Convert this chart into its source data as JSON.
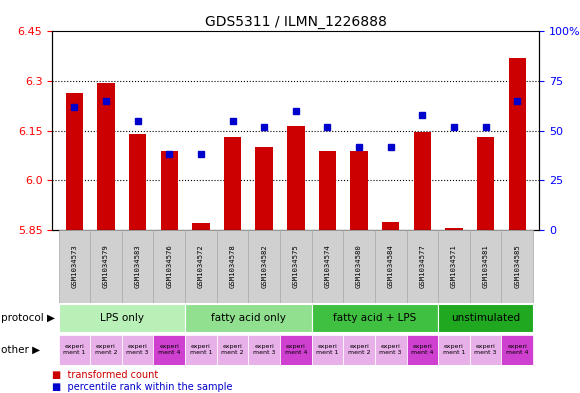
{
  "title": "GDS5311 / ILMN_1226888",
  "samples": [
    "GSM1034573",
    "GSM1034579",
    "GSM1034583",
    "GSM1034576",
    "GSM1034572",
    "GSM1034578",
    "GSM1034582",
    "GSM1034575",
    "GSM1034574",
    "GSM1034580",
    "GSM1034584",
    "GSM1034577",
    "GSM1034571",
    "GSM1034581",
    "GSM1034585"
  ],
  "transformed_count": [
    6.265,
    6.295,
    6.14,
    6.09,
    5.87,
    6.13,
    6.1,
    6.165,
    6.09,
    6.09,
    5.875,
    6.145,
    5.855,
    6.13,
    6.37
  ],
  "percentile_rank": [
    62,
    65,
    55,
    38,
    38,
    55,
    52,
    60,
    52,
    42,
    42,
    58,
    52,
    52,
    65
  ],
  "protocol_groups": [
    {
      "label": "LPS only",
      "start": 0,
      "end": 3,
      "color": "#b8f0b8"
    },
    {
      "label": "fatty acid only",
      "start": 4,
      "end": 7,
      "color": "#90e090"
    },
    {
      "label": "fatty acid + LPS",
      "start": 8,
      "end": 11,
      "color": "#40c040"
    },
    {
      "label": "unstimulated",
      "start": 12,
      "end": 14,
      "color": "#20a820"
    }
  ],
  "experiment_labels": [
    "experiment 1",
    "experiment 2",
    "experiment 3",
    "experiment 4",
    "experiment 1",
    "experiment 2",
    "experiment 3",
    "experiment 4",
    "experiment 1",
    "experiment 2",
    "experiment 3",
    "experiment 4",
    "experiment 1",
    "experiment 3",
    "experiment 4"
  ],
  "experiment_colors": [
    "#e8b0e8",
    "#e8b0e8",
    "#e8b0e8",
    "#d040d0",
    "#e8b0e8",
    "#e8b0e8",
    "#e8b0e8",
    "#d040d0",
    "#e8b0e8",
    "#e8b0e8",
    "#e8b0e8",
    "#d040d0",
    "#e8b0e8",
    "#e8b0e8",
    "#d040d0"
  ],
  "bar_color": "#cc0000",
  "dot_color": "#0000cc",
  "ylim_left": [
    5.85,
    6.45
  ],
  "ylim_right": [
    0,
    100
  ],
  "yticks_left": [
    5.85,
    6.0,
    6.15,
    6.3,
    6.45
  ],
  "yticks_right": [
    0,
    25,
    50,
    75,
    100
  ],
  "bar_width": 0.55,
  "sample_box_color": "#d0d0d0",
  "sample_box_edge": "#aaaaaa"
}
